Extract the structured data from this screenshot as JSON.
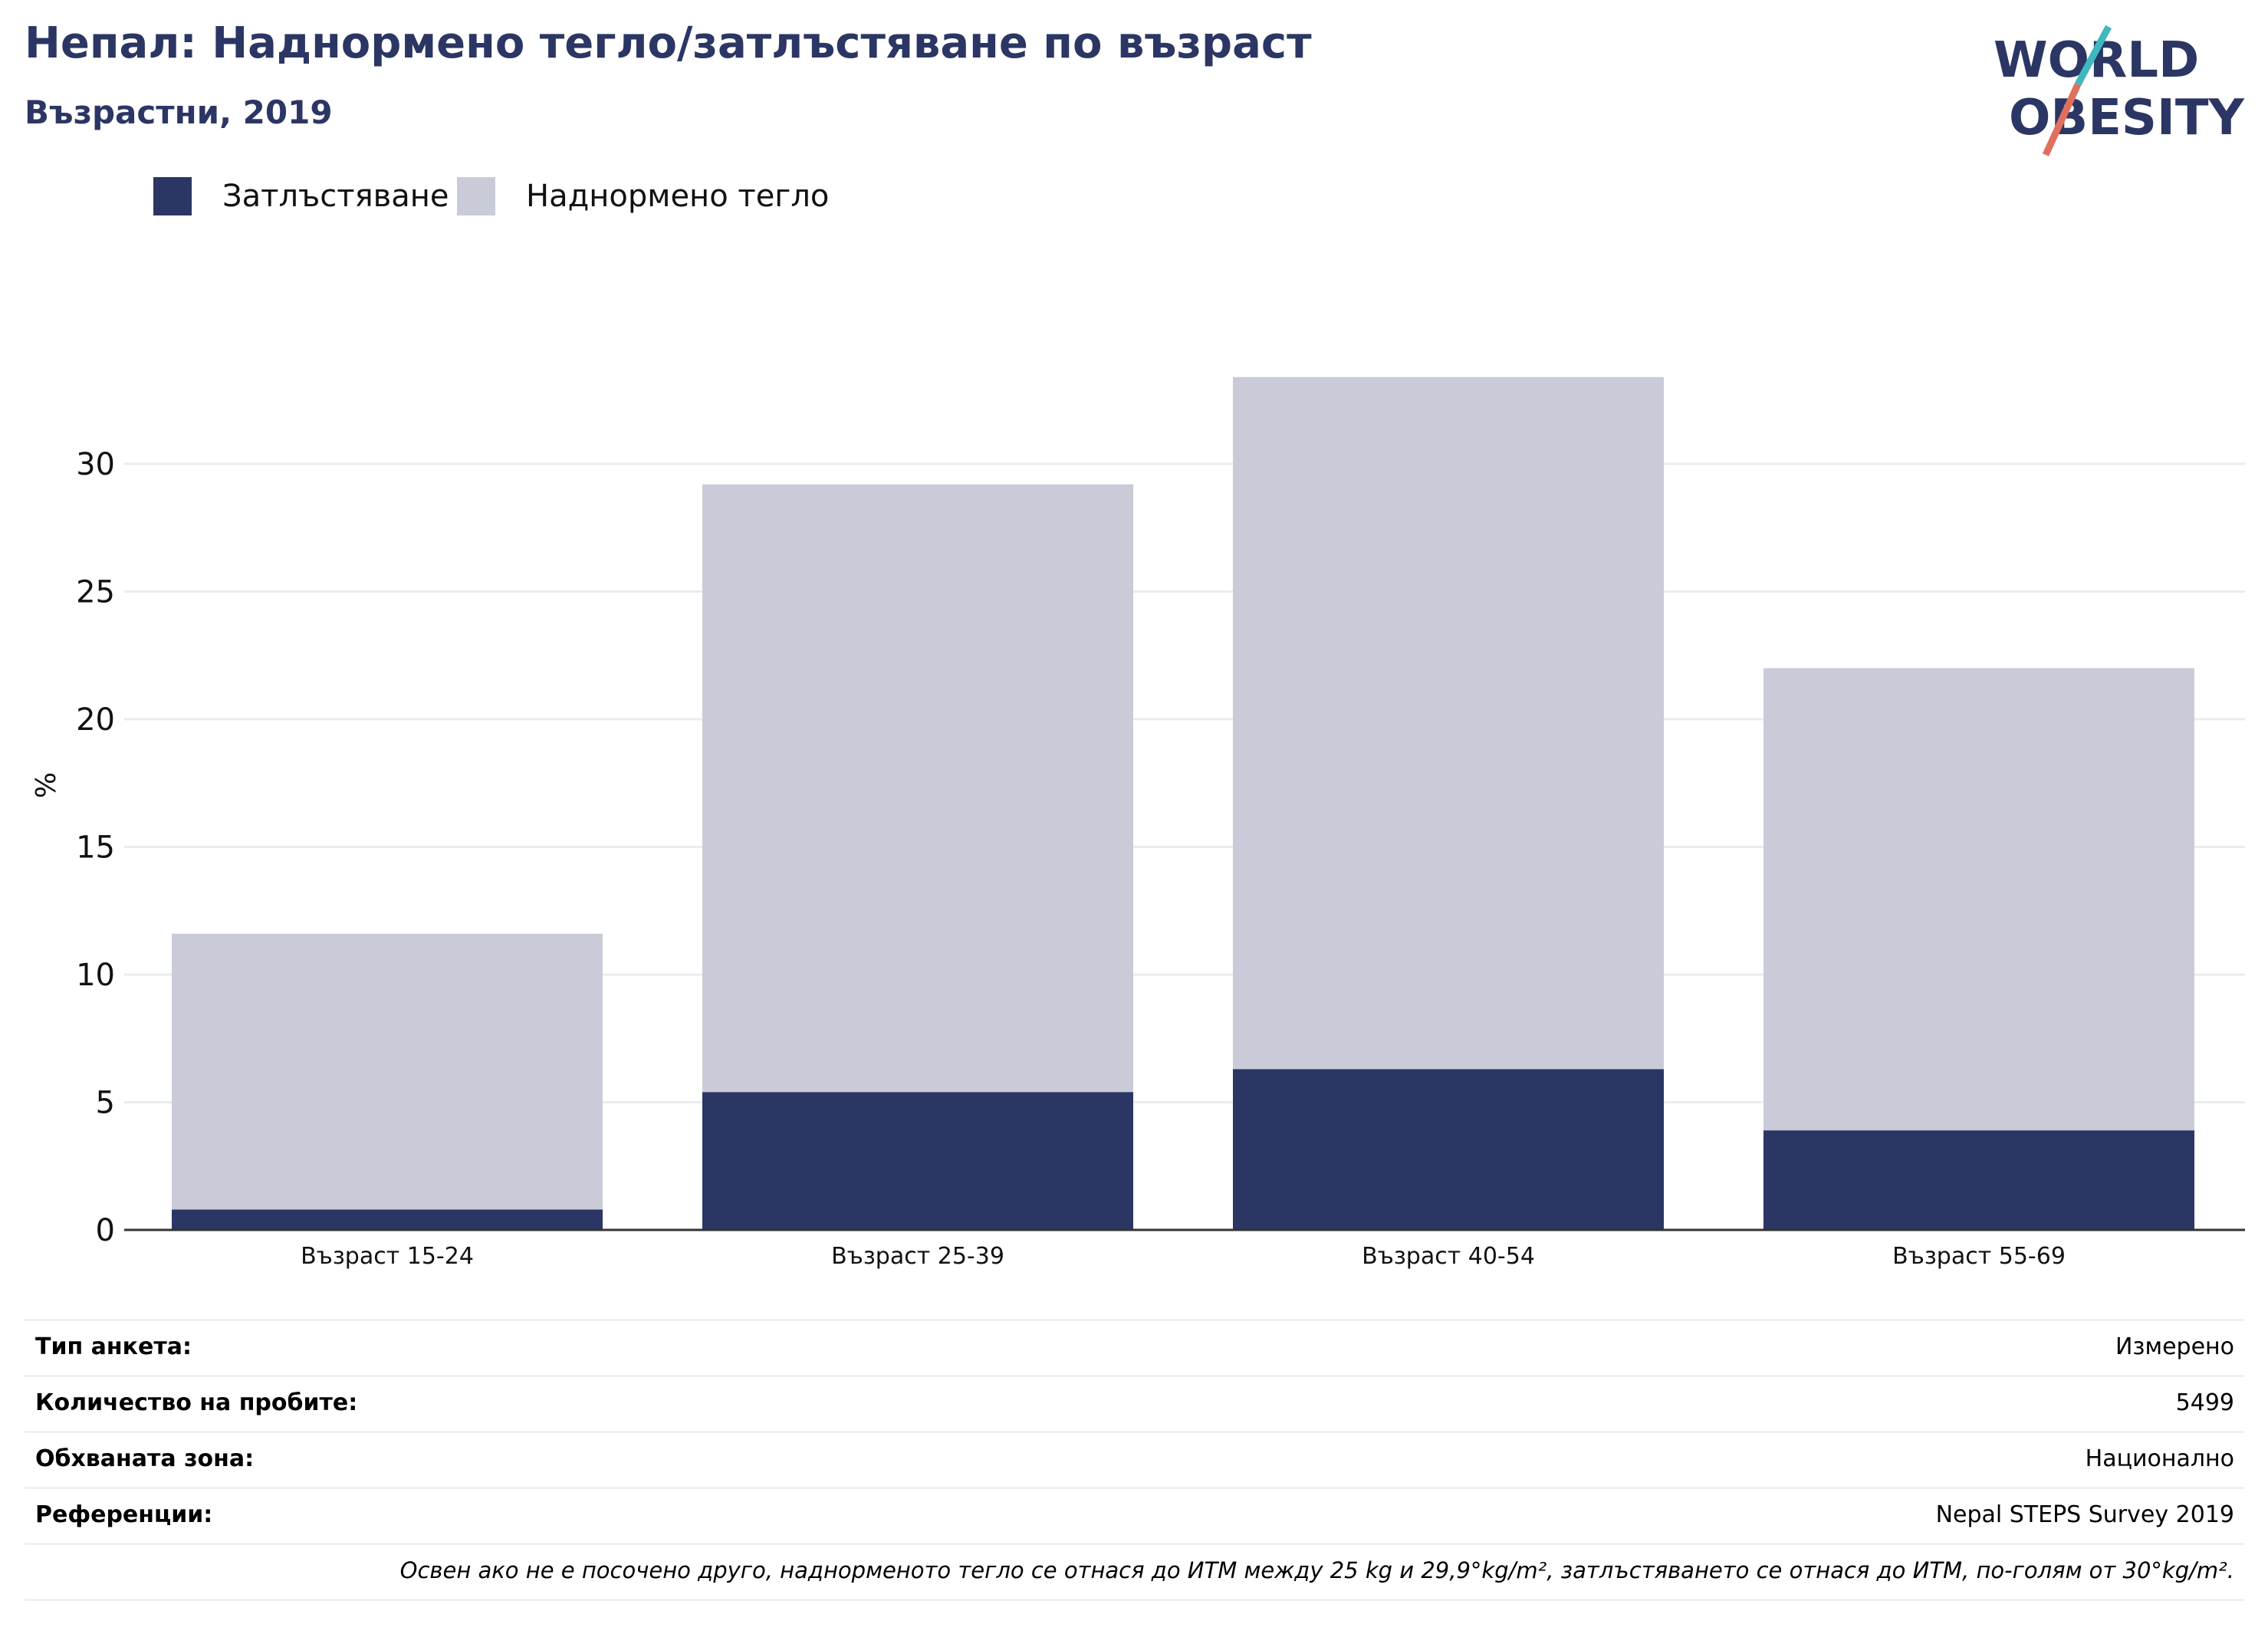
{
  "header": {
    "title": "Непал: Наднормено тегло/затлъстяване по възраст",
    "subtitle": "Възрастни, 2019"
  },
  "logo": {
    "line1": "WORLD",
    "line2": "OBESITY"
  },
  "colors": {
    "obesity": "#2b3664",
    "overweight": "#c9ccd8",
    "title": "#2b3664",
    "logo_slash_top": "#3fb8c0",
    "logo_slash_bottom": "#e0705d",
    "grid": "#e9edf2",
    "axis": "#333333"
  },
  "chart_data": {
    "type": "bar",
    "stacked": true,
    "categories": [
      "Възраст 15-24",
      "Възраст 25-39",
      "Възраст 40-54",
      "Възраст 55-69"
    ],
    "series": [
      {
        "name": "Затлъстяване",
        "values": [
          0.8,
          5.4,
          6.3,
          3.9
        ]
      },
      {
        "name": "Наднормено тегло",
        "values": [
          10.8,
          23.8,
          27.1,
          18.1
        ]
      }
    ],
    "ylabel": "%",
    "ylim": [
      0,
      36
    ],
    "yticks": [
      0,
      5,
      10,
      15,
      20,
      25,
      30
    ],
    "legend_position": "top-left",
    "grid": true
  },
  "info_table": {
    "rows": [
      {
        "label": "Тип анкета:",
        "value": "Измерено"
      },
      {
        "label": "Количество на пробите:",
        "value": "5499"
      },
      {
        "label": "Обхваната зона:",
        "value": "Национално"
      },
      {
        "label": "Референции:",
        "value": "Nepal STEPS Survey 2019"
      }
    ],
    "note": "Освен ако не е посочено друго, наднорменото тегло се отнася до ИТМ между 25 kg и 29,9°kg/m², затлъстяването се отнася до ИТМ, по-голям от 30°kg/m²."
  }
}
